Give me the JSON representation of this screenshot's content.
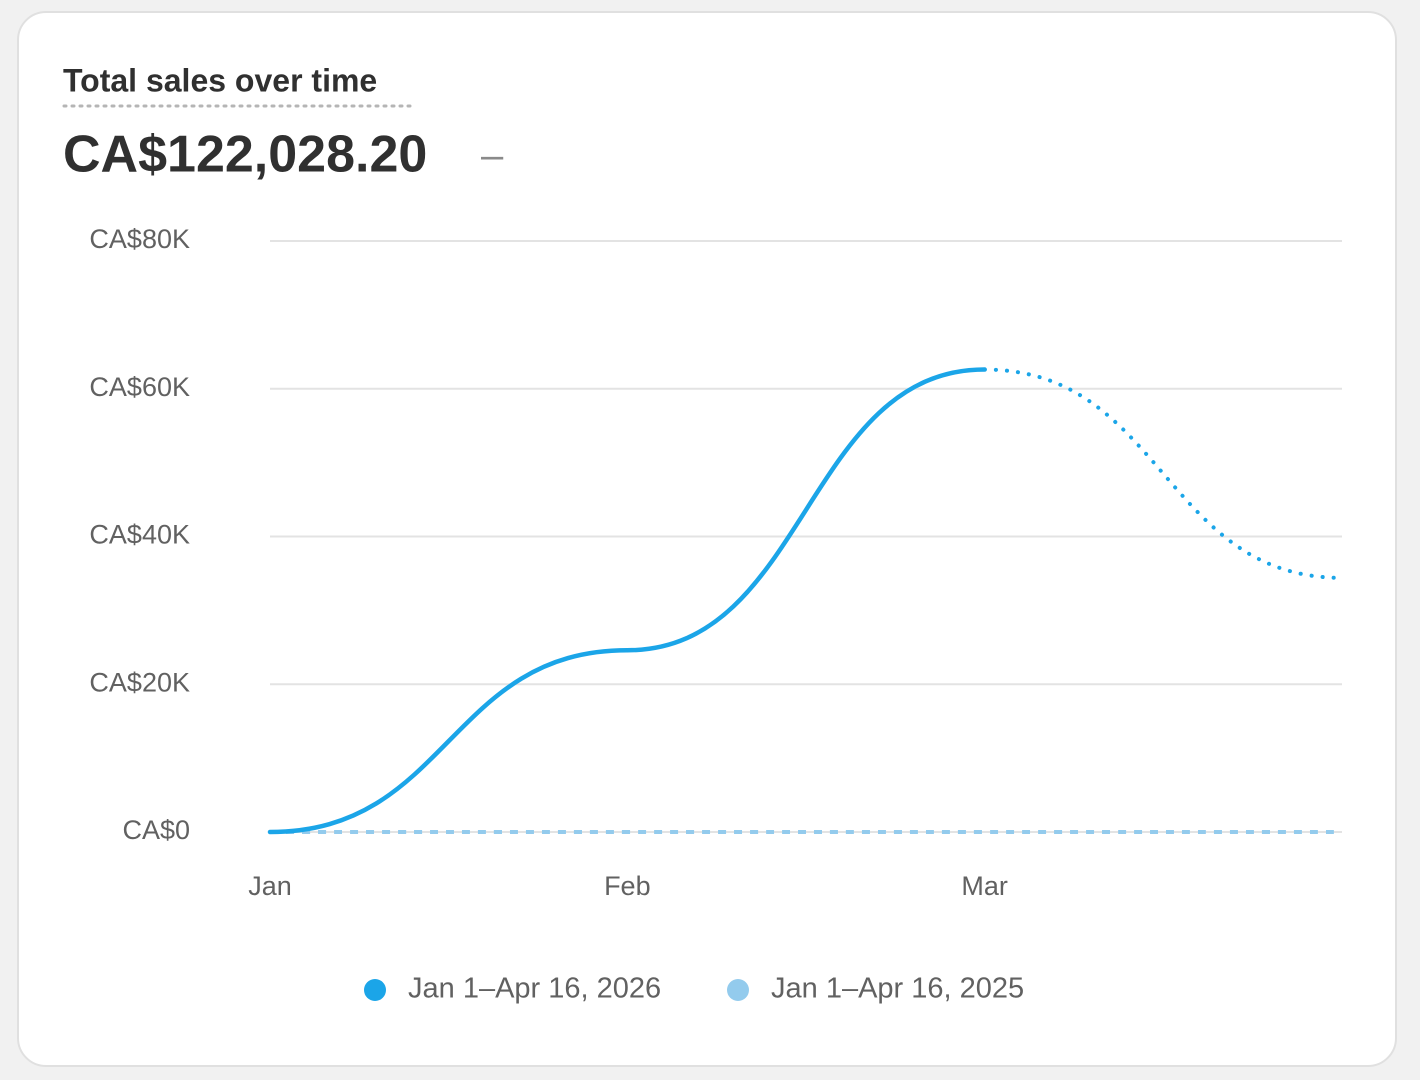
{
  "header": {
    "title": "Total sales over time",
    "total": "CA$122,028.20",
    "comparison": "–"
  },
  "chart_data": {
    "type": "line",
    "categories": [
      "Jan",
      "Feb",
      "Mar",
      null
    ],
    "series": [
      {
        "name": "Jan 1–Apr 16, 2026",
        "color": "#1ba5e8",
        "values": [
          0,
          24600,
          62600,
          34400
        ]
      },
      {
        "name": "Jan 1–Apr 16, 2025",
        "color": "#93cbed",
        "values": [
          0,
          0,
          0,
          0
        ]
      }
    ],
    "ylim": [
      0,
      80000
    ],
    "yticks": [
      {
        "value": 0,
        "label": "CA$0"
      },
      {
        "value": 20000,
        "label": "CA$20K"
      },
      {
        "value": 40000,
        "label": "CA$40K"
      },
      {
        "value": 60000,
        "label": "CA$60K"
      },
      {
        "value": 80000,
        "label": "CA$80K"
      }
    ],
    "grid": true
  }
}
